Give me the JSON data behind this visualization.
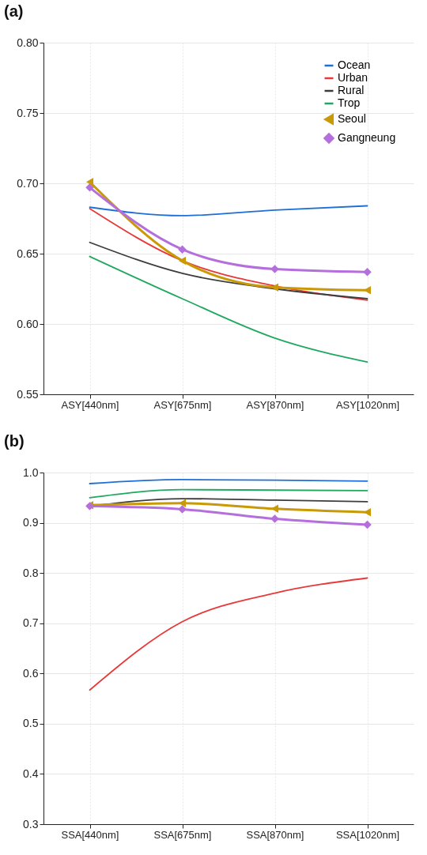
{
  "chart_data": [
    {
      "type": "line",
      "title": "(a)",
      "categories": [
        "ASY[440nm]",
        "ASY[675nm]",
        "ASY[870nm]",
        "ASY[1020nm]"
      ],
      "ylim": [
        0.55,
        0.8
      ],
      "yticks": [
        {
          "value": 0.55,
          "label": "0.55"
        },
        {
          "value": 0.6,
          "label": "0.60"
        },
        {
          "value": 0.65,
          "label": "0.65"
        },
        {
          "value": 0.7,
          "label": "0.70"
        },
        {
          "value": 0.75,
          "label": "0.75"
        },
        {
          "value": 0.8,
          "label": "0.80"
        }
      ],
      "grid": true,
      "legend": "top right",
      "line_style": "solid",
      "series": [
        {
          "name": "Ocean",
          "color": "#1f6fd6",
          "values": [
            0.683,
            0.677,
            0.681,
            0.684
          ],
          "marker": "none"
        },
        {
          "name": "Urban",
          "color": "#e8393a",
          "values": [
            0.682,
            0.645,
            0.627,
            0.617
          ],
          "marker": "none"
        },
        {
          "name": "Rural",
          "color": "#3d3d3d",
          "values": [
            0.658,
            0.636,
            0.625,
            0.618
          ],
          "marker": "none"
        },
        {
          "name": "Trop",
          "color": "#20a860",
          "values": [
            0.648,
            0.618,
            0.59,
            0.573
          ],
          "marker": "none"
        },
        {
          "name": "Seoul",
          "color": "#c99a06",
          "values": [
            0.701,
            0.645,
            0.626,
            0.624
          ],
          "marker": "triangle"
        },
        {
          "name": "Gangneung",
          "color": "#b56fdc",
          "values": [
            0.697,
            0.653,
            0.639,
            0.637
          ],
          "marker": "diamond"
        }
      ]
    },
    {
      "type": "line",
      "title": "(b)",
      "categories": [
        "SSA[440nm]",
        "SSA[675nm]",
        "SSA[870nm]",
        "SSA[1020nm]"
      ],
      "ylim": [
        0.3,
        1.0
      ],
      "yticks": [
        {
          "value": 0.3,
          "label": "0.3"
        },
        {
          "value": 0.4,
          "label": "0.4"
        },
        {
          "value": 0.5,
          "label": "0.5"
        },
        {
          "value": 0.6,
          "label": "0.6"
        },
        {
          "value": 0.7,
          "label": "0.7"
        },
        {
          "value": 0.8,
          "label": "0.8"
        },
        {
          "value": 0.9,
          "label": "0.9"
        },
        {
          "value": 1.0,
          "label": "1.0"
        }
      ],
      "grid": true,
      "line_style": "solid",
      "series": [
        {
          "color": "#1f6fd6",
          "values": [
            0.978,
            0.986,
            0.985,
            0.983
          ],
          "marker": "none"
        },
        {
          "color": "#e8393a",
          "values": [
            0.567,
            0.703,
            0.76,
            0.79
          ],
          "marker": "none"
        },
        {
          "color": "#3d3d3d",
          "values": [
            0.933,
            0.948,
            0.945,
            0.942
          ],
          "marker": "none"
        },
        {
          "color": "#20a860",
          "values": [
            0.95,
            0.966,
            0.965,
            0.964
          ],
          "marker": "none"
        },
        {
          "color": "#c99a06",
          "values": [
            0.935,
            0.939,
            0.928,
            0.921
          ],
          "marker": "triangle"
        },
        {
          "color": "#b56fdc",
          "values": [
            0.933,
            0.927,
            0.908,
            0.896
          ],
          "marker": "diamond"
        }
      ]
    }
  ]
}
